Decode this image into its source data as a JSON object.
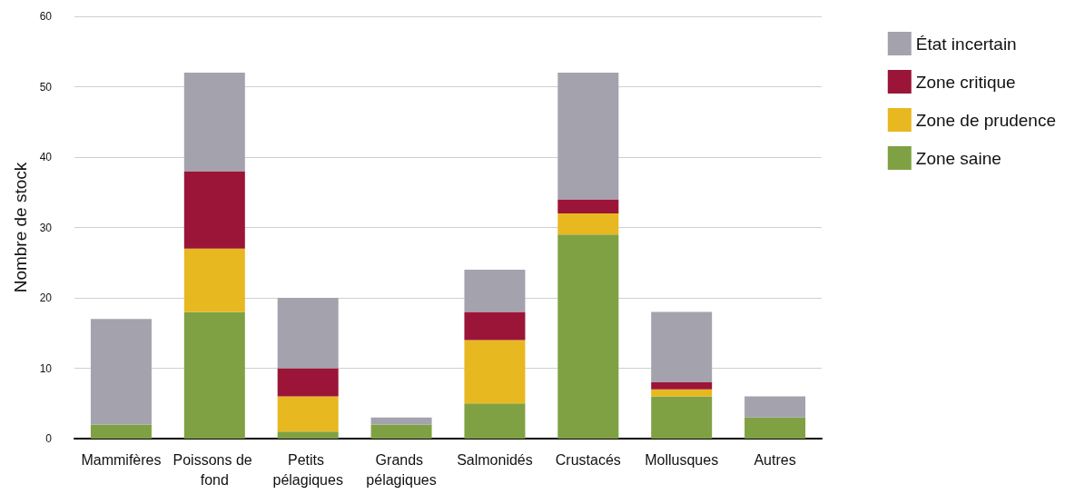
{
  "chart_data": {
    "type": "bar",
    "stacked": true,
    "ylabel": "Nombre de stock",
    "categories": [
      "Mammifères",
      "Poissons de fond",
      "Petits pélagiques",
      "Grands pélagiques",
      "Salmonidés",
      "Crustacés",
      "Mollusques",
      "Autres"
    ],
    "series": [
      {
        "name": "Zone saine",
        "color": "#7fa143",
        "values": [
          2,
          18,
          1,
          2,
          5,
          29,
          6,
          3
        ]
      },
      {
        "name": "Zone de prudence",
        "color": "#e8b820",
        "values": [
          0,
          9,
          5,
          0,
          9,
          3,
          1,
          0
        ]
      },
      {
        "name": "Zone critique",
        "color": "#9b1538",
        "values": [
          0,
          11,
          4,
          0,
          4,
          2,
          1,
          0
        ]
      },
      {
        "name": "État incertain",
        "color": "#a4a2ad",
        "values": [
          15,
          14,
          10,
          1,
          6,
          18,
          10,
          3
        ]
      }
    ],
    "ylim": [
      0,
      60
    ],
    "yticks": [
      0,
      10,
      20,
      30,
      40,
      50,
      60
    ],
    "grid": "y",
    "legend": "top right"
  }
}
